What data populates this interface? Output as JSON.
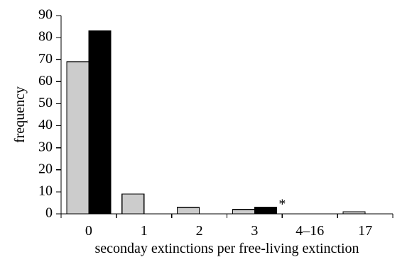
{
  "chart_data": {
    "type": "bar",
    "title": "",
    "xlabel": "seconday extinctions per free-living extinction",
    "ylabel": "frequency",
    "categories": [
      "0",
      "1",
      "2",
      "3",
      "4–16",
      "17"
    ],
    "ylim": [
      0,
      90
    ],
    "yticks": [
      "0",
      "10",
      "20",
      "30",
      "40",
      "50",
      "60",
      "70",
      "80",
      "90"
    ],
    "series": [
      {
        "values": [
          69,
          9,
          3,
          2,
          0,
          1
        ],
        "color": "#cccccc"
      },
      {
        "values": [
          83,
          0,
          0,
          3,
          0,
          0
        ],
        "color": "#000000"
      }
    ],
    "annotation": {
      "text": "*",
      "category": "3",
      "series": 1
    },
    "grid": false,
    "legend": "none"
  }
}
